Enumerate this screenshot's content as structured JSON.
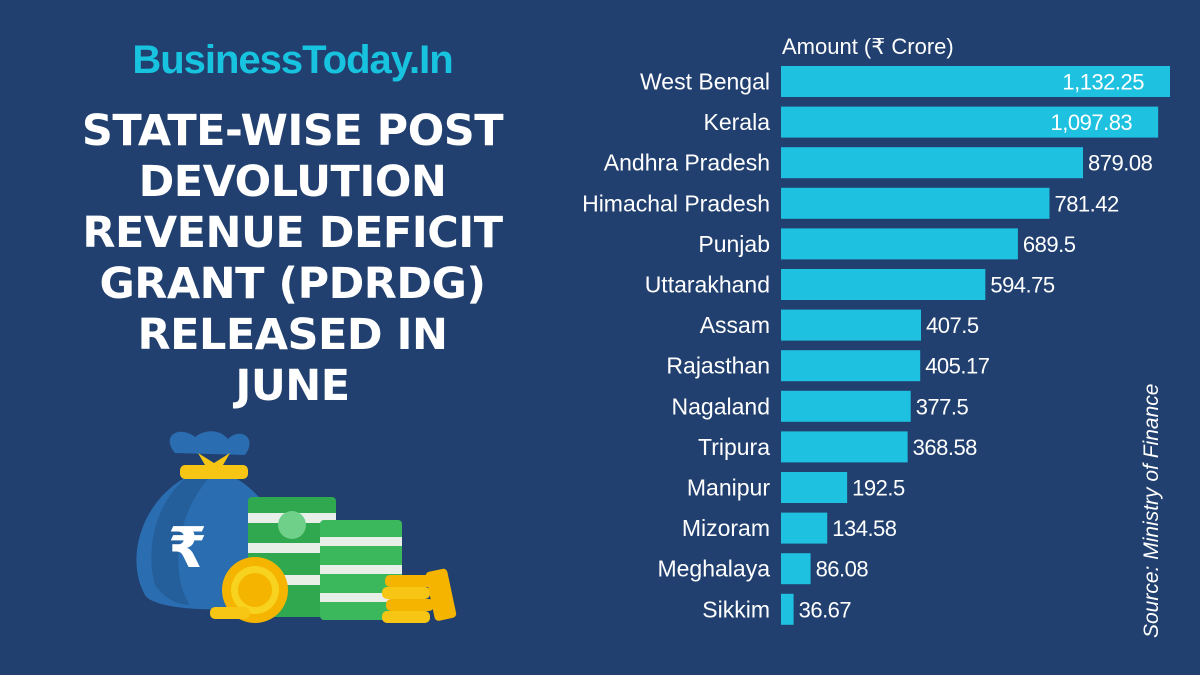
{
  "brand": "BusinessToday.In",
  "headline": "STATE-WISE POST\nDEVOLUTION\nREVENUE DEFICIT\nGRANT (PDRDG)\nRELEASED IN\nJUNE",
  "source": "Source: Ministry of Finance",
  "colors": {
    "background": "#21406f",
    "bar": "#1ec1e0",
    "brand": "#18c3e0",
    "text": "#ffffff"
  },
  "chart_data": {
    "type": "bar",
    "orientation": "horizontal",
    "xlabel": "Amount (₹ Crore)",
    "ylabel": "",
    "categories": [
      "West Bengal",
      "Kerala",
      "Andhra Pradesh",
      "Himachal Pradesh",
      "Punjab",
      "Uttarakhand",
      "Assam",
      "Rajasthan",
      "Nagaland",
      "Tripura",
      "Manipur",
      "Mizoram",
      "Meghalaya",
      "Sikkim"
    ],
    "values": [
      1132.25,
      1097.83,
      879.08,
      781.42,
      689.5,
      594.75,
      407.5,
      405.17,
      377.5,
      368.58,
      192.5,
      134.58,
      86.08,
      36.67
    ],
    "labels": [
      "1,132.25",
      "1,097.83",
      "879.08",
      "781.42",
      "689.5",
      "594.75",
      "407.5",
      "405.17",
      "377.5",
      "368.58",
      "192.5",
      "134.58",
      "86.08",
      "36.67"
    ],
    "grid": false,
    "legend": "none"
  }
}
